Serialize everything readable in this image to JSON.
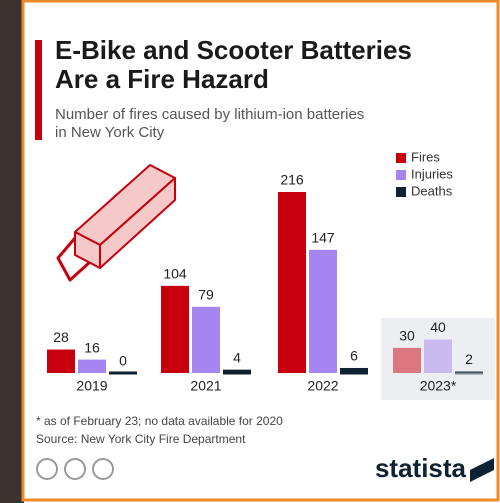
{
  "chart_data": {
    "type": "bar",
    "title_lines": [
      "E-Bike and Scooter Batteries",
      "Are a Fire Hazard"
    ],
    "subtitle_lines": [
      "Number of fires caused by lithium-ion batteries",
      "in New York City"
    ],
    "categories": [
      "2019",
      "2021",
      "2022",
      "2023*"
    ],
    "series": [
      {
        "name": "Fires",
        "color": "#c8000e",
        "values": [
          28,
          104,
          216,
          30
        ]
      },
      {
        "name": "Injuries",
        "color": "#a585f0",
        "values": [
          16,
          79,
          147,
          40
        ]
      },
      {
        "name": "Deaths",
        "color": "#0f2233",
        "values": [
          0,
          4,
          6,
          2
        ]
      }
    ],
    "footnote": "* as of February 23; no data available for 2020",
    "source": "Source: New York City Fire Department",
    "brand": "statista"
  }
}
